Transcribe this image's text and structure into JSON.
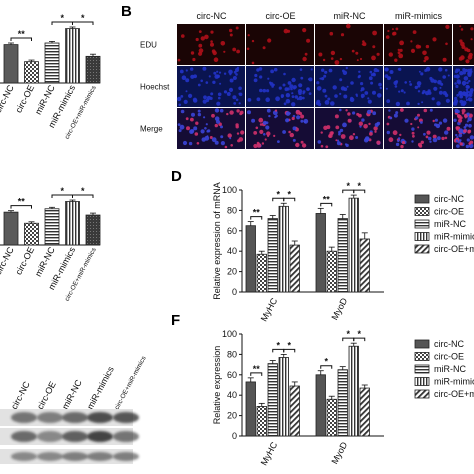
{
  "panel_letters": {
    "B": "B",
    "D": "D",
    "F": "F"
  },
  "microscopy": {
    "columns": [
      "circ-NC",
      "circ-OE",
      "miR-NC",
      "miR-mimics",
      "c"
    ],
    "rows": [
      "EDU",
      "Hoechst",
      "Merge"
    ],
    "colors": {
      "EDU": "#b0101a",
      "Hoechst": "#2233c8",
      "Merge": "#6a2ab0"
    }
  },
  "blot": {
    "columns": [
      "circ-NC",
      "circ-OE",
      "miR-NC",
      "miR-mimics",
      "circ-OE+miR-mimics"
    ],
    "bands": 3
  },
  "legend_entries": [
    "circ-NC",
    "circ-OE",
    "miR-NC",
    "miR-mimics",
    "circ-OE+miR-mimics"
  ],
  "legend_visible": [
    "circ-NC",
    "circ-OE",
    "miR-NC",
    "miR-mimic",
    "circ-OE+m"
  ],
  "chart_data": [
    {
      "id": "A",
      "type": "bar",
      "categories": [
        "circ-NC",
        "circ-OE",
        "miR-NC",
        "miR-mimics",
        "circ-OE+miR-mimics"
      ],
      "values": [
        72,
        40,
        75,
        102,
        50
      ],
      "errors": [
        3,
        3,
        3,
        3,
        4
      ],
      "ylim": [
        0,
        120
      ],
      "significance": [
        {
          "a": 0,
          "b": 1,
          "label": "**"
        },
        {
          "a": 2,
          "b": 3,
          "label": "*"
        },
        {
          "a": 3,
          "b": 4,
          "label": "*"
        }
      ]
    },
    {
      "id": "C",
      "type": "bar",
      "categories": [
        "circ-NC",
        "circ-OE",
        "miR-NC",
        "miR-mimics",
        "circ-OE+miR-mimics"
      ],
      "values": [
        68,
        45,
        75,
        90,
        62
      ],
      "errors": [
        3,
        3,
        3,
        3,
        4
      ],
      "ylim": [
        0,
        120
      ],
      "significance": [
        {
          "a": 0,
          "b": 1,
          "label": "**"
        },
        {
          "a": 2,
          "b": 3,
          "label": "*"
        },
        {
          "a": 3,
          "b": 4,
          "label": "*"
        }
      ]
    },
    {
      "id": "D",
      "type": "bar",
      "ylabel": "Relative expression of mRNA",
      "categories": [
        "MyHC",
        "MyoD"
      ],
      "series": [
        {
          "name": "circ-NC",
          "values": [
            65,
            77
          ],
          "errors": [
            4,
            5
          ]
        },
        {
          "name": "circ-OE",
          "values": [
            37,
            40
          ],
          "errors": [
            3,
            4
          ]
        },
        {
          "name": "miR-NC",
          "values": [
            72,
            72
          ],
          "errors": [
            3,
            4
          ]
        },
        {
          "name": "miR-mimics",
          "values": [
            84,
            92
          ],
          "errors": [
            3,
            3
          ]
        },
        {
          "name": "circ-OE+miR-mimics",
          "values": [
            46,
            52
          ],
          "errors": [
            4,
            6
          ]
        }
      ],
      "ylim": [
        0,
        100
      ],
      "yticks": [
        0,
        20,
        40,
        60,
        80,
        100
      ],
      "significance": [
        {
          "group": 0,
          "a": 0,
          "b": 1,
          "label": "**"
        },
        {
          "group": 0,
          "a": 2,
          "b": 3,
          "label": "*"
        },
        {
          "group": 0,
          "a": 3,
          "b": 4,
          "label": "*"
        },
        {
          "group": 1,
          "a": 0,
          "b": 1,
          "label": "**"
        },
        {
          "group": 1,
          "a": 2,
          "b": 3,
          "label": "*"
        },
        {
          "group": 1,
          "a": 3,
          "b": 4,
          "label": "*"
        }
      ]
    },
    {
      "id": "F",
      "type": "bar",
      "ylabel": "Relative expression",
      "categories": [
        "MyHC",
        "MyoD"
      ],
      "series": [
        {
          "name": "circ-NC",
          "values": [
            53,
            60
          ],
          "errors": [
            4,
            4
          ]
        },
        {
          "name": "circ-OE",
          "values": [
            29,
            36
          ],
          "errors": [
            3,
            3
          ]
        },
        {
          "name": "miR-NC",
          "values": [
            71,
            65
          ],
          "errors": [
            3,
            3
          ]
        },
        {
          "name": "miR-mimics",
          "values": [
            77,
            88
          ],
          "errors": [
            3,
            3
          ]
        },
        {
          "name": "circ-OE+miR-mimics",
          "values": [
            49,
            47
          ],
          "errors": [
            4,
            3
          ]
        }
      ],
      "ylim": [
        0,
        100
      ],
      "yticks": [
        0,
        20,
        40,
        60,
        80,
        100
      ],
      "significance": [
        {
          "group": 0,
          "a": 0,
          "b": 1,
          "label": "**"
        },
        {
          "group": 0,
          "a": 2,
          "b": 3,
          "label": "*"
        },
        {
          "group": 0,
          "a": 3,
          "b": 4,
          "label": "*"
        },
        {
          "group": 1,
          "a": 0,
          "b": 1,
          "label": "*"
        },
        {
          "group": 1,
          "a": 2,
          "b": 3,
          "label": "*"
        },
        {
          "group": 1,
          "a": 3,
          "b": 4,
          "label": "*"
        }
      ]
    }
  ]
}
